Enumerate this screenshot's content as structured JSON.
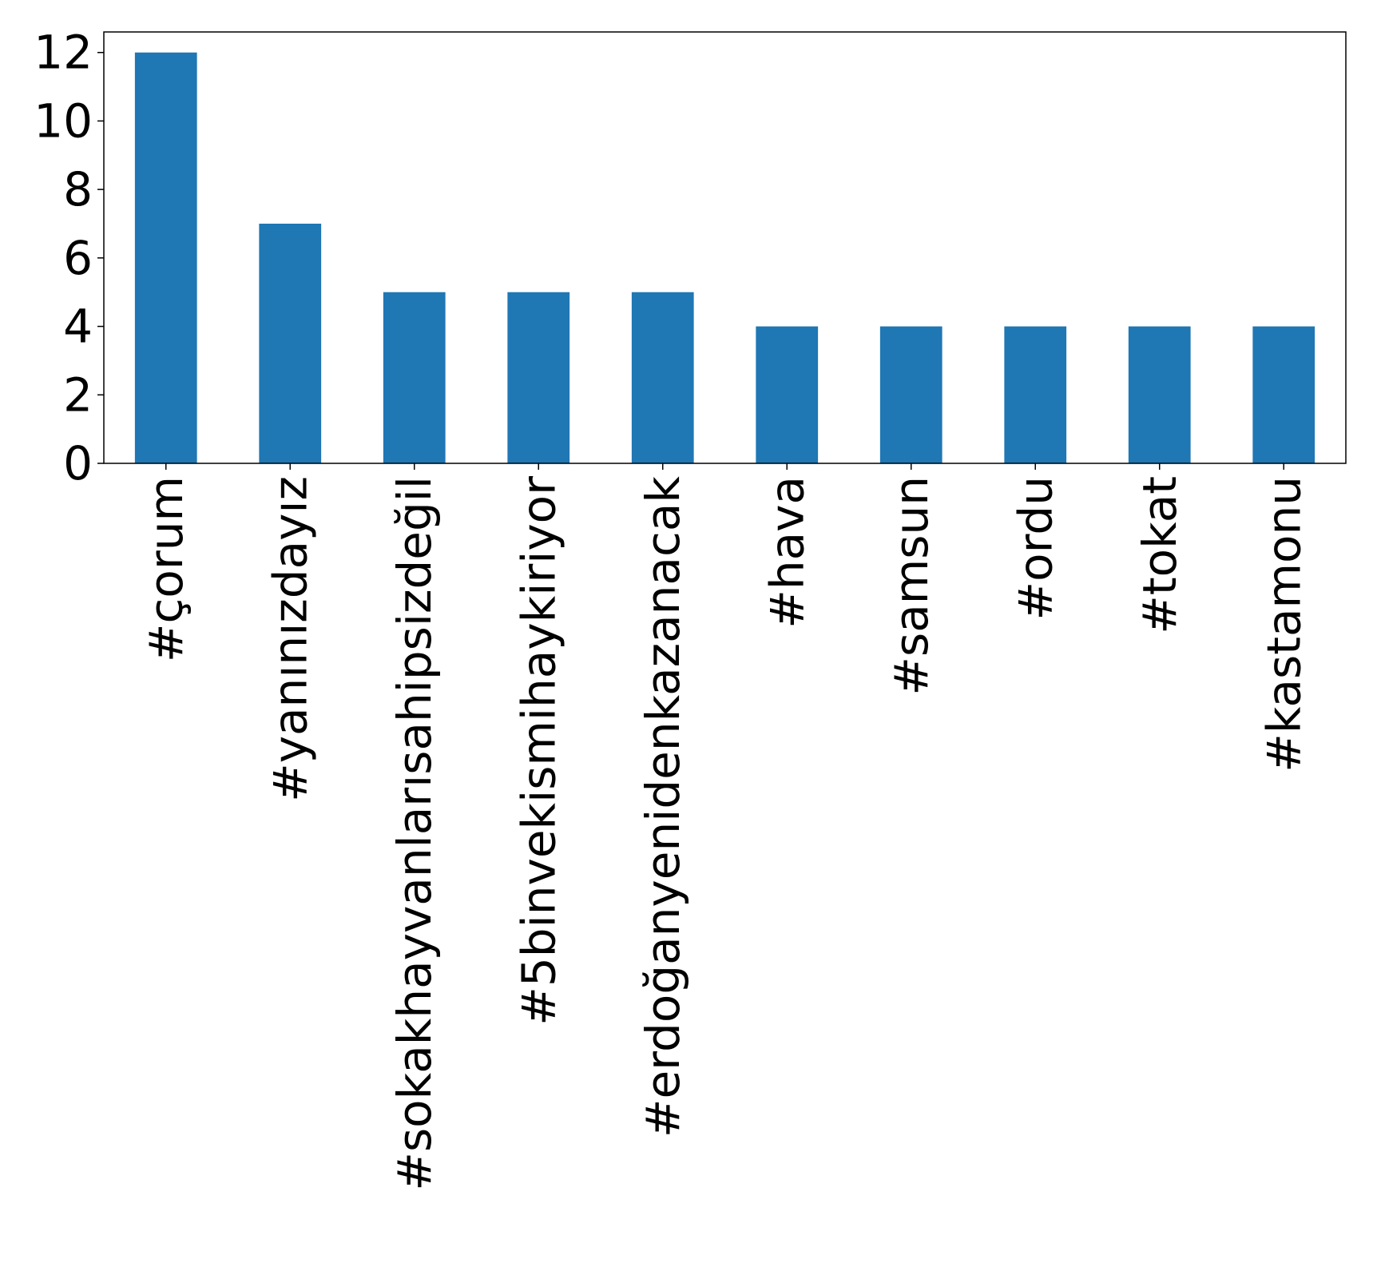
{
  "chart_data": {
    "type": "bar",
    "title": "",
    "xlabel": "",
    "ylabel": "",
    "categories": [
      "#çorum",
      "#yanınızdayız",
      "#sokakhayvanlarısahipsizdeğil",
      "#5binvekismihaykiriyor",
      "#erdoğanyenidenkazanacak",
      "#hava",
      "#samsun",
      "#ordu",
      "#tokat",
      "#kastamonu"
    ],
    "values": [
      12,
      7,
      5,
      5,
      5,
      4,
      4,
      4,
      4,
      4
    ],
    "ylim": [
      0,
      12.6
    ],
    "yticks": [
      0,
      2,
      4,
      6,
      8,
      10,
      12
    ],
    "grid": false,
    "legend": "none",
    "colors": {
      "bar": "#1f77b4",
      "axis": "#000000",
      "text": "#000000",
      "background": "#ffffff"
    }
  }
}
